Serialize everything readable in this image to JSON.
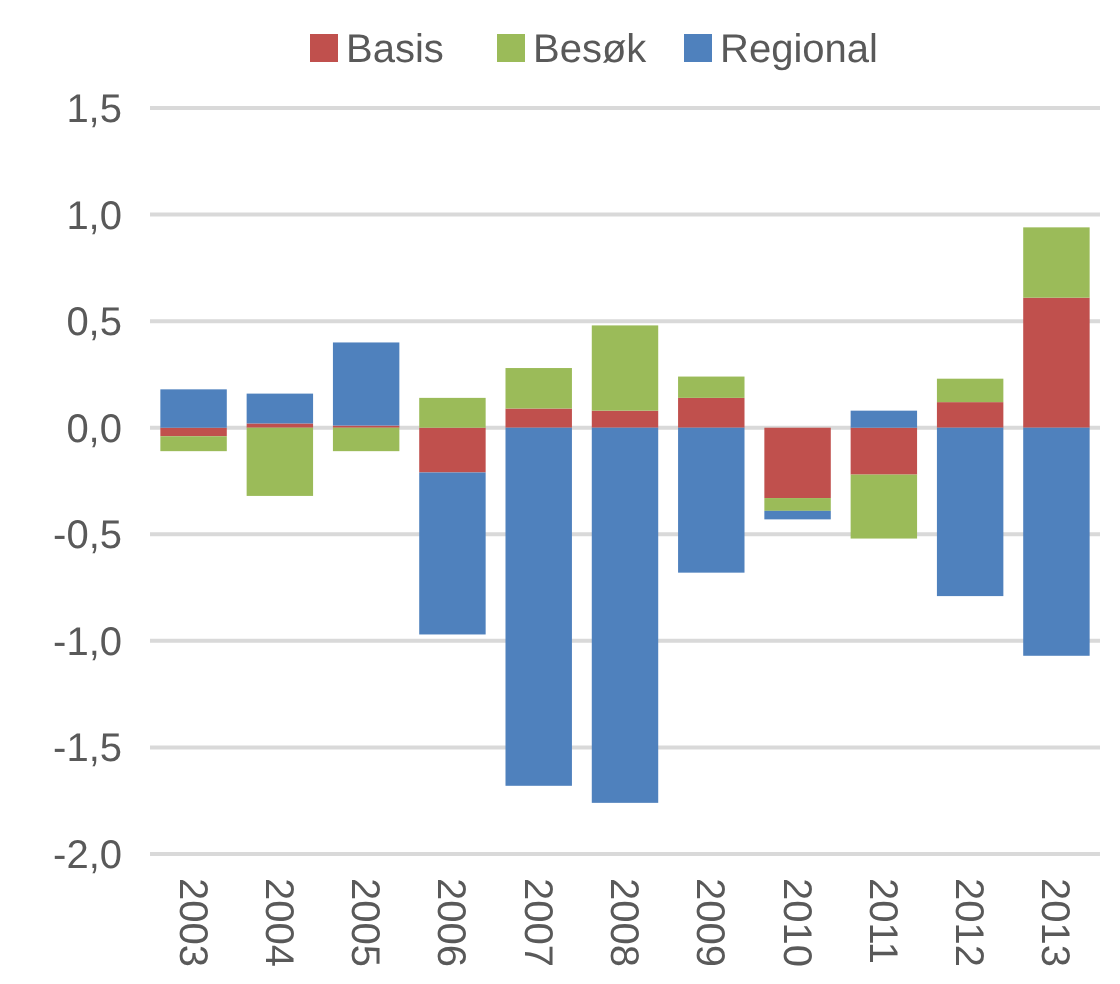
{
  "chart_data": {
    "type": "bar",
    "stacked": true,
    "categories": [
      "2003",
      "2004",
      "2005",
      "2006",
      "2007",
      "2008",
      "2009",
      "2010",
      "2011",
      "2012",
      "2013"
    ],
    "series": [
      {
        "name": "Basis",
        "color": "#c0504d",
        "values": [
          -0.04,
          0.02,
          0.01,
          -0.21,
          0.09,
          0.08,
          0.14,
          -0.33,
          -0.22,
          0.12,
          0.61
        ]
      },
      {
        "name": "Besøk",
        "color": "#9bbb59",
        "values": [
          -0.07,
          -0.32,
          -0.11,
          0.14,
          0.19,
          0.4,
          0.1,
          -0.06,
          -0.3,
          0.11,
          0.33
        ]
      },
      {
        "name": "Regional",
        "color": "#4f81bd",
        "values": [
          0.18,
          0.14,
          0.39,
          -0.76,
          -1.68,
          -1.76,
          -0.68,
          -0.04,
          0.08,
          -0.79,
          -1.07
        ]
      }
    ],
    "ylim": [
      -2,
      1.5
    ],
    "yticks": [
      {
        "value": -2,
        "label": "-2,0"
      },
      {
        "value": -1.5,
        "label": "-1,5"
      },
      {
        "value": -1,
        "label": "-1,0"
      },
      {
        "value": -0.5,
        "label": "-0,5"
      },
      {
        "value": 0,
        "label": "0,0"
      },
      {
        "value": 0.5,
        "label": "0,5"
      },
      {
        "value": 1,
        "label": "1,0"
      },
      {
        "value": 1.5,
        "label": "1,5"
      }
    ],
    "grid": "y",
    "legend": "top"
  }
}
